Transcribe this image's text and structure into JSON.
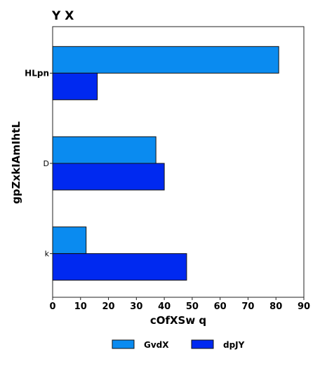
{
  "chart_data": {
    "type": "bar",
    "orientation": "horizontal",
    "title": "Y  X",
    "xlabel": "cOfXSw q",
    "ylabel": "gpZxkIAmIhtL",
    "categories": [
      "HLpn",
      "D",
      "k"
    ],
    "series": [
      {
        "name": "GvdX",
        "values": [
          81,
          37,
          12
        ],
        "color": "#0a8bf0"
      },
      {
        "name": "dpJY",
        "values": [
          16,
          40,
          48
        ],
        "color": "#0029f0"
      }
    ],
    "xlim": [
      0,
      90
    ],
    "xticks": [
      0,
      10,
      20,
      30,
      40,
      50,
      60,
      70,
      80,
      90
    ],
    "grid": false,
    "legend_position": "bottom"
  }
}
